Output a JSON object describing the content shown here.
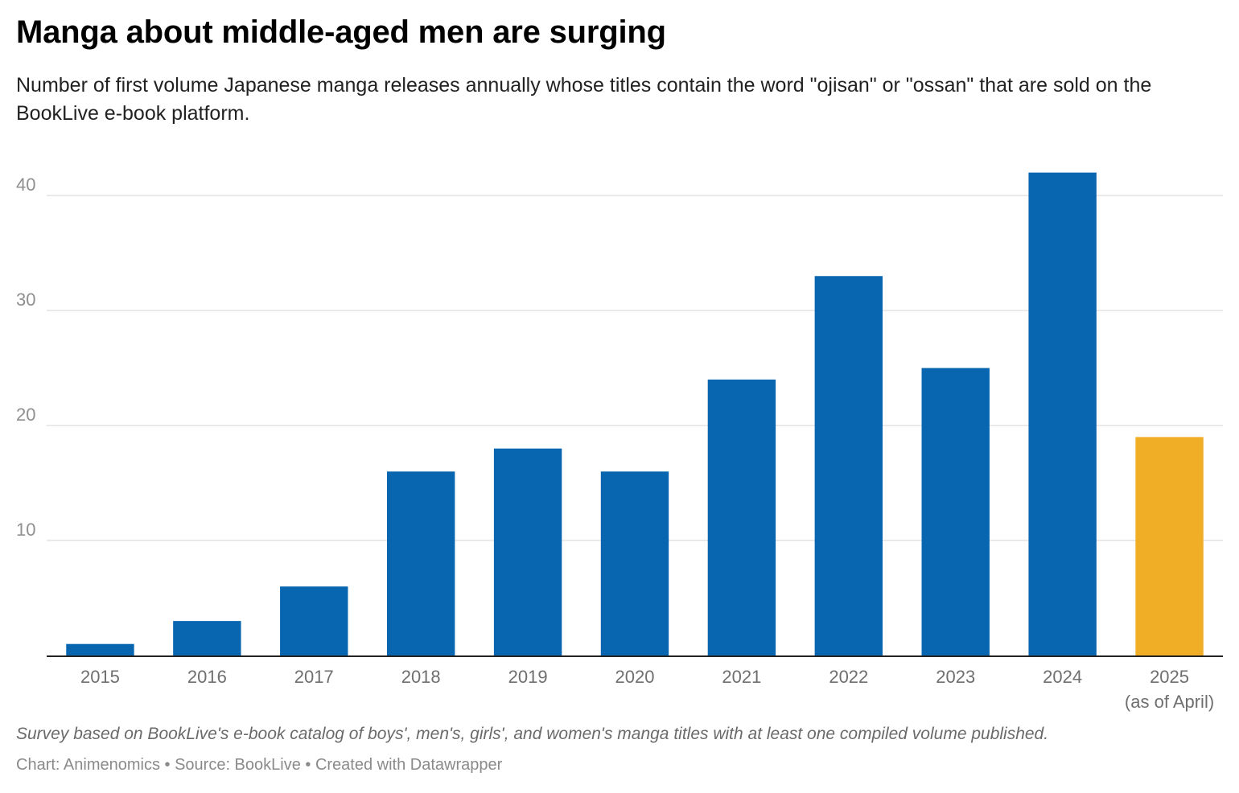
{
  "chart_data": {
    "type": "bar",
    "title": "Manga about middle-aged men are surging",
    "subtitle": "Number of first volume Japanese manga releases annually whose titles contain the word \"ojisan\" or \"ossan\" that are sold on the BookLive e-book platform.",
    "categories": [
      {
        "label": "2015",
        "sublabel": ""
      },
      {
        "label": "2016",
        "sublabel": ""
      },
      {
        "label": "2017",
        "sublabel": ""
      },
      {
        "label": "2018",
        "sublabel": ""
      },
      {
        "label": "2019",
        "sublabel": ""
      },
      {
        "label": "2020",
        "sublabel": ""
      },
      {
        "label": "2021",
        "sublabel": ""
      },
      {
        "label": "2022",
        "sublabel": ""
      },
      {
        "label": "2023",
        "sublabel": ""
      },
      {
        "label": "2024",
        "sublabel": ""
      },
      {
        "label": "2025",
        "sublabel": "(as of April)"
      }
    ],
    "values": [
      1,
      3,
      6,
      16,
      18,
      16,
      24,
      33,
      25,
      42,
      19
    ],
    "colors": [
      "#0866b1",
      "#0866b1",
      "#0866b1",
      "#0866b1",
      "#0866b1",
      "#0866b1",
      "#0866b1",
      "#0866b1",
      "#0866b1",
      "#0866b1",
      "#f0ad26"
    ],
    "xlabel": "",
    "ylabel": "",
    "ylim": [
      0,
      44
    ],
    "yticks": [
      10,
      20,
      30,
      40
    ],
    "grid": true,
    "legend": "none",
    "notes": "Survey based on BookLive's e-book catalog of boys', men's, girls', and women's manga titles with at least one compiled volume published.",
    "byline": "Chart: Animenomics • Source: BookLive • Created with Datawrapper"
  }
}
